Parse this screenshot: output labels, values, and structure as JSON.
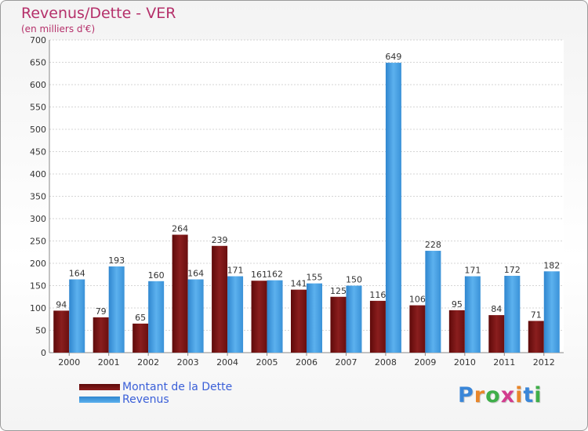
{
  "header": {
    "title": "Revenus/Dette - VER",
    "subtitle": "(en milliers d'€)"
  },
  "colors": {
    "debt": "#7a1414",
    "revenue": "#3f9be0",
    "title": "#b5306a",
    "legend_text": "#3a5fd8"
  },
  "chart_data": {
    "type": "bar",
    "categories": [
      "2000",
      "2001",
      "2002",
      "2003",
      "2004",
      "2005",
      "2006",
      "2007",
      "2008",
      "2009",
      "2010",
      "2011",
      "2012"
    ],
    "series": [
      {
        "name": "Montant de la Dette",
        "values": [
          94,
          79,
          65,
          264,
          239,
          161,
          141,
          125,
          116,
          106,
          95,
          84,
          71
        ]
      },
      {
        "name": "Revenus",
        "values": [
          164,
          193,
          160,
          164,
          171,
          162,
          155,
          150,
          649,
          228,
          171,
          172,
          182
        ]
      }
    ],
    "ylim": [
      0,
      700
    ],
    "yticks": [
      0,
      50,
      100,
      150,
      200,
      250,
      300,
      350,
      400,
      450,
      500,
      550,
      600,
      650,
      700
    ],
    "grid": true,
    "legend": "bottom-left"
  },
  "logo": {
    "text": "Proxiti",
    "letters": [
      "P",
      "r",
      "o",
      "x",
      "i",
      "t",
      "i"
    ],
    "letter_colors": [
      "#3a86d8",
      "#e8862a",
      "#3fae49",
      "#d23c8e",
      "#e8862a",
      "#3a86d8",
      "#3fae49"
    ]
  }
}
